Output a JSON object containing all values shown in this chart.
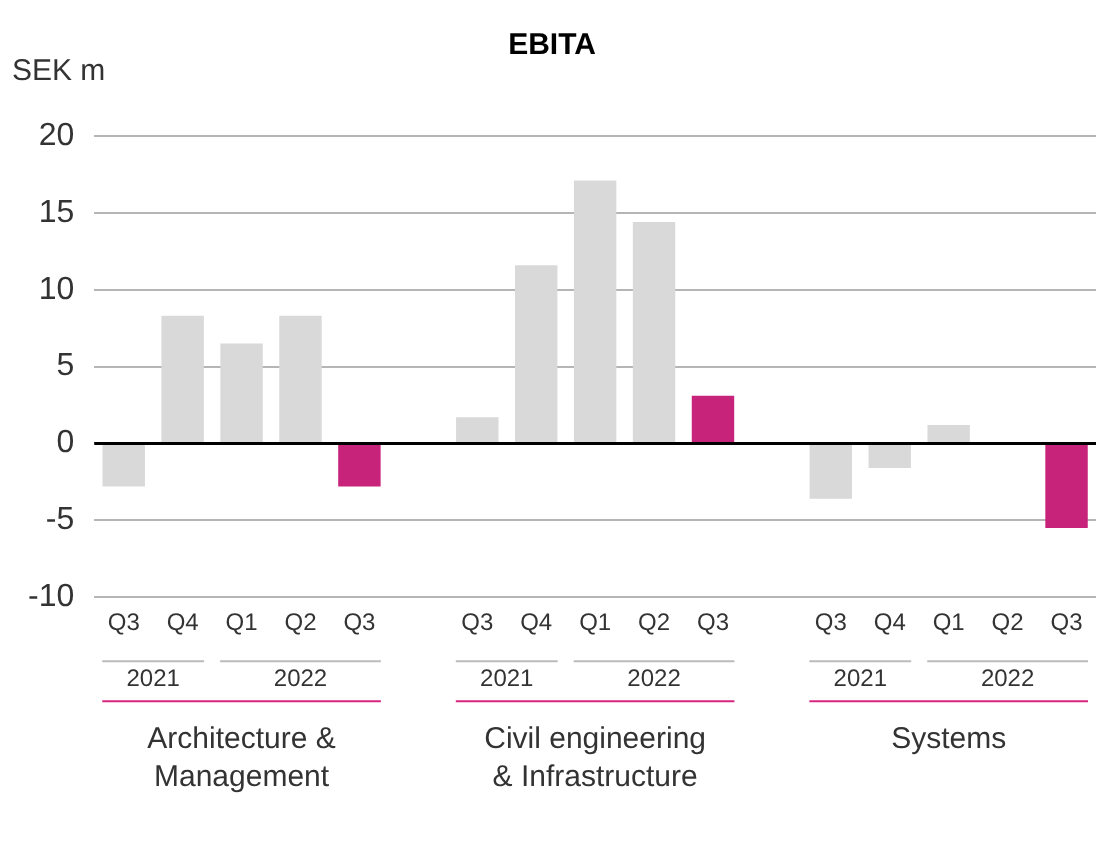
{
  "chart_data": {
    "type": "bar",
    "title": "EBITA",
    "ylabel": "SEK m",
    "categories": [
      "Q3",
      "Q4",
      "Q1",
      "Q2",
      "Q3",
      null,
      "Q3",
      "Q4",
      "Q1",
      "Q2",
      "Q3",
      null,
      "Q3",
      "Q4",
      "Q1",
      "Q2",
      "Q3"
    ],
    "values": [
      -2.8,
      8.3,
      6.5,
      8.3,
      -2.8,
      null,
      1.7,
      11.6,
      17.1,
      14.4,
      3.1,
      null,
      -3.6,
      -1.6,
      1.2,
      0,
      -5.5
    ],
    "colors": [
      "#d9d9d9",
      "#d9d9d9",
      "#d9d9d9",
      "#d9d9d9",
      "#c8237a",
      "#d9d9d9",
      "#d9d9d9",
      "#d9d9d9",
      "#d9d9d9",
      "#d9d9d9",
      "#c8237a",
      "#d9d9d9",
      "#d9d9d9",
      "#d9d9d9",
      "#d9d9d9",
      "#d9d9d9",
      "#c8237a"
    ],
    "ylim": [
      -10,
      20
    ],
    "yticks": [
      -10,
      -5,
      0,
      5,
      10,
      15,
      20
    ],
    "grid": "y",
    "legend": false,
    "annotations": [
      "2021",
      "2022",
      "2021",
      "2022",
      "2021",
      "2022",
      "Architecture & Management",
      "Civil engineering & Infrastructure",
      "Systems"
    ]
  }
}
